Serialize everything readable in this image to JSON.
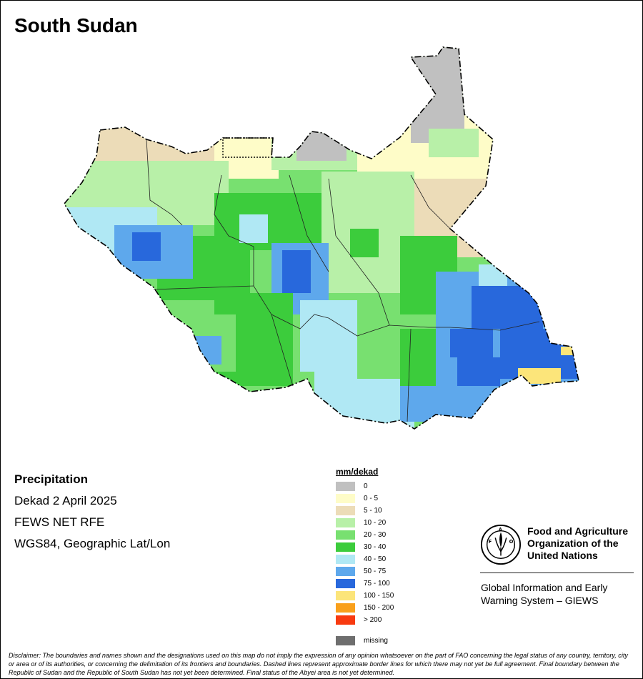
{
  "title": "South Sudan",
  "info": {
    "heading": "Precipitation",
    "period": "Dekad 2 April 2025",
    "source": "FEWS NET RFE",
    "projection": "WGS84, Geographic Lat/Lon"
  },
  "legend": {
    "title": "mm/dekad",
    "items": [
      {
        "label": "0",
        "color": "#c0c0c0"
      },
      {
        "label": "0 - 5",
        "color": "#fefcc8"
      },
      {
        "label": "5 - 10",
        "color": "#ecdcb8"
      },
      {
        "label": "10 - 20",
        "color": "#b8f0a8"
      },
      {
        "label": "20 - 30",
        "color": "#78e070"
      },
      {
        "label": "30 - 40",
        "color": "#3ccc3c"
      },
      {
        "label": "40 - 50",
        "color": "#b0e8f4"
      },
      {
        "label": "50 - 75",
        "color": "#5ea8ec"
      },
      {
        "label": "75 - 100",
        "color": "#2868dc"
      },
      {
        "label": "100 - 150",
        "color": "#fce57a"
      },
      {
        "label": "150 - 200",
        "color": "#f9a01b"
      },
      {
        "label": "> 200",
        "color": "#f83a10"
      }
    ],
    "missing": {
      "label": "missing",
      "color": "#6e6e6e"
    }
  },
  "fao": {
    "name": "Food and Agriculture Organization of the United Nations",
    "system": "Global Information and Early Warning System – GIEWS"
  },
  "disclaimer": "Disclaimer: The boundaries and names shown and the designations used on this map do not imply the expression of any opinion whatsoever on the part of FAO concerning the legal status of any country, territory, city or area or of its authorities, or concerning the delimitation of its frontiers and boundaries. Dashed lines represent approximate border lines for which there may not yet be full agreement.  Final boundary between the Republic of Sudan and the Republic of South Sudan has not yet been determined. Final status of the Abyei area is not yet determined."
}
